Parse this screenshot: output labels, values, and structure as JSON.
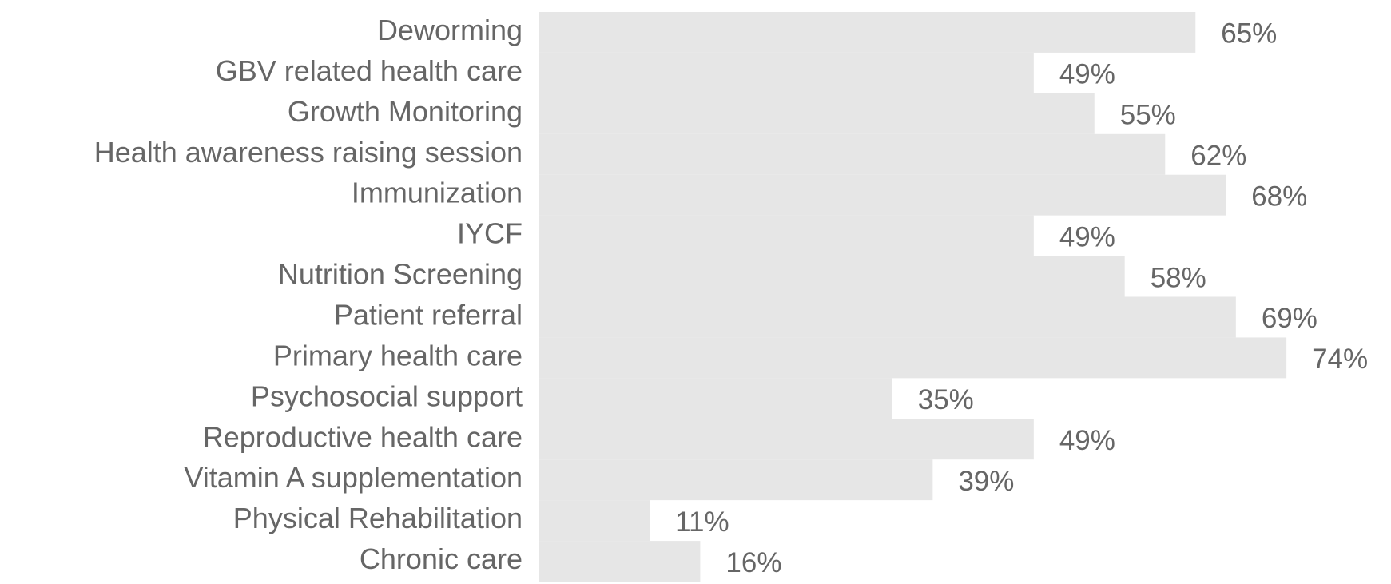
{
  "chart_data": {
    "type": "bar",
    "orientation": "horizontal",
    "categories": [
      "Deworming",
      "GBV related health care",
      "Growth Monitoring",
      "Health awareness raising session",
      "Immunization",
      "IYCF",
      "Nutrition Screening",
      "Patient referral",
      "Primary health care",
      "Psychosocial support",
      "Reproductive health care",
      "Vitamin A supplementation",
      "Physical Rehabilitation",
      "Chronic care"
    ],
    "values": [
      65,
      49,
      55,
      62,
      68,
      49,
      58,
      69,
      74,
      35,
      49,
      39,
      11,
      16
    ],
    "value_labels": [
      "65%",
      "49%",
      "55%",
      "62%",
      "68%",
      "49%",
      "58%",
      "69%",
      "74%",
      "35%",
      "49%",
      "39%",
      "11%",
      "16%"
    ],
    "color": "#e6e6e6",
    "xlim": [
      0,
      100
    ]
  }
}
